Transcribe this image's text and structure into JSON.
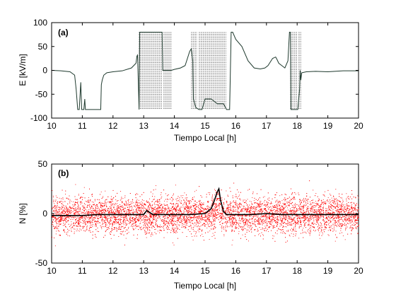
{
  "chart_data": [
    {
      "type": "line",
      "panel_label": "(a)",
      "xlabel": "Tiempo Local [h]",
      "ylabel": "E  [kV/m]",
      "xlim": [
        10,
        20
      ],
      "ylim": [
        -100,
        100
      ],
      "xticks": [
        10,
        11,
        12,
        13,
        14,
        15,
        16,
        17,
        18,
        19,
        20
      ],
      "yticks": [
        -100,
        -50,
        0,
        50,
        100
      ],
      "grid": false,
      "series": [
        {
          "color": "#1f3a2e",
          "x": [
            10.0,
            10.3,
            10.6,
            10.75,
            10.8,
            10.85,
            10.9,
            10.95,
            10.98,
            11.05,
            11.08,
            11.1,
            11.12,
            11.15,
            11.2,
            11.5,
            11.6,
            11.62,
            11.65,
            11.7,
            11.8,
            12.0,
            12.3,
            12.6,
            12.75,
            12.78,
            12.8,
            12.85,
            12.87,
            13.6,
            13.62,
            13.7,
            13.8,
            13.9,
            14.0,
            14.2,
            14.35,
            14.5,
            14.55,
            14.6,
            14.62,
            14.7,
            14.8,
            14.9,
            15.0,
            15.2,
            15.4,
            15.6,
            15.7,
            15.8,
            15.85,
            15.9,
            16.0,
            16.2,
            16.4,
            16.6,
            16.8,
            16.95,
            17.05,
            17.1,
            17.2,
            17.3,
            17.35,
            17.4,
            17.5,
            17.6,
            17.7,
            17.75,
            17.78,
            17.8,
            18.0,
            18.02,
            18.05,
            18.08,
            18.1,
            18.12,
            18.15,
            18.3,
            18.6,
            19.0,
            19.5,
            20.0
          ],
          "y": [
            0,
            -1,
            -3,
            -10,
            -40,
            -82,
            -82,
            -25,
            -82,
            -82,
            -60,
            -82,
            -82,
            -82,
            -82,
            -82,
            -82,
            -30,
            -20,
            -10,
            -5,
            -3,
            -1,
            5,
            15,
            30,
            32,
            -82,
            80,
            80,
            0,
            0,
            0,
            0,
            2,
            5,
            10,
            40,
            45,
            20,
            -60,
            -78,
            -82,
            -82,
            -60,
            -60,
            -70,
            -70,
            -82,
            -82,
            80,
            80,
            65,
            50,
            20,
            5,
            3,
            5,
            10,
            15,
            25,
            28,
            22,
            15,
            10,
            5,
            20,
            80,
            80,
            -82,
            -82,
            -82,
            -60,
            -40,
            0,
            -20,
            -5,
            -3,
            -2,
            -3,
            -1,
            -1
          ]
        }
      ]
    },
    {
      "type": "scatter",
      "panel_label": "(b)",
      "xlabel": "Tiempo Local [h]",
      "ylabel": "N  [%]",
      "xlim": [
        10,
        20
      ],
      "ylim": [
        -50,
        50
      ],
      "xticks": [
        10,
        11,
        12,
        13,
        14,
        15,
        16,
        17,
        18,
        19,
        20
      ],
      "yticks": [
        -50,
        0,
        50
      ],
      "grid": false,
      "series": [
        {
          "kind": "scatter",
          "color": "#ff0000",
          "x_range": [
            10,
            20
          ],
          "mean": -1,
          "std": 9
        },
        {
          "kind": "line",
          "color": "#000000",
          "x": [
            10.0,
            10.5,
            11.0,
            11.5,
            12.0,
            12.5,
            13.0,
            13.1,
            13.2,
            13.3,
            13.5,
            14.0,
            14.5,
            15.0,
            15.2,
            15.3,
            15.4,
            15.45,
            15.5,
            15.6,
            15.7,
            16.0,
            16.5,
            17.0,
            17.5,
            18.0,
            18.5,
            19.0,
            19.5,
            20.0
          ],
          "y": [
            -2,
            -2,
            -2,
            -1,
            -1,
            -1,
            -1,
            3,
            1,
            -1,
            -1,
            -1,
            -1,
            0,
            5,
            13,
            22,
            25,
            14,
            2,
            -1,
            -1,
            -1,
            0,
            -1,
            -1,
            -1,
            -1,
            -1,
            -1
          ]
        }
      ]
    }
  ]
}
